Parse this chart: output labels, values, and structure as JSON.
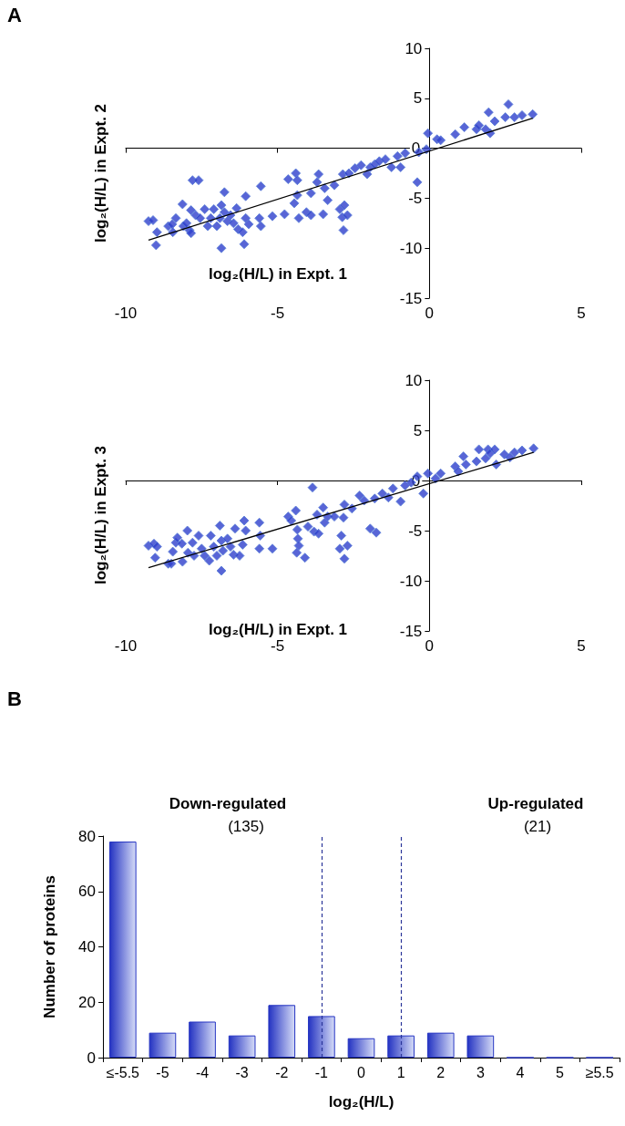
{
  "chart_data": [
    {
      "type": "scatter",
      "title": "A",
      "xlabel": "log₂(H/L) in Expt. 1",
      "ylabel": "log₂(H/L) in Expt. 2",
      "xlim": [
        -10,
        5
      ],
      "xticks": [
        -10,
        -5,
        0,
        5
      ],
      "ylim": [
        -15,
        10
      ],
      "yticks": [
        -15,
        -10,
        -5,
        0,
        5,
        10
      ],
      "marker": "diamond",
      "series": [
        {
          "type": "scatter",
          "color": "#2e3fcc",
          "x": [
            -9.25,
            -9.1,
            -8.97,
            -9.0,
            -8.6,
            -8.47,
            -8.35,
            -8.45,
            -8.13,
            -8.1,
            -8.0,
            -7.9,
            -7.85,
            -7.8,
            -7.6,
            -7.85,
            -7.7,
            -7.55,
            -7.4,
            -7.3,
            -7.2,
            -7.1,
            -7.0,
            -6.9,
            -6.85,
            -6.85,
            -6.75,
            -6.75,
            -6.65,
            -6.55,
            -6.45,
            -6.35,
            -6.3,
            -6.15,
            -6.1,
            -6.05,
            -6.05,
            -5.95,
            -5.6,
            -5.55,
            -5.55,
            -5.17,
            -4.77,
            -4.65,
            -4.4,
            -4.35,
            -4.45,
            -4.35,
            -4.3,
            -4.05,
            -3.9,
            -3.9,
            -3.7,
            -3.65,
            -3.5,
            -3.45,
            -3.35,
            -3.13,
            -2.95,
            -2.8,
            -2.87,
            -2.7,
            -2.83,
            -2.85,
            -2.65,
            -2.45,
            -2.25,
            -2.05,
            -1.95,
            -1.8,
            -1.65,
            -1.45,
            -1.25,
            -1.05,
            -0.95,
            -0.8,
            -0.4,
            -0.35,
            -0.1,
            -0.05,
            0.25,
            0.37,
            0.85,
            1.15,
            1.55,
            1.63,
            1.85,
            1.95,
            2.0,
            2.15,
            2.5,
            2.6,
            2.8,
            3.05,
            3.4
          ],
          "values": [
            -7.3,
            -7.2,
            -8.4,
            -9.7,
            -7.8,
            -7.6,
            -7.0,
            -8.4,
            -5.6,
            -7.8,
            -7.5,
            -8.2,
            -8.5,
            -3.2,
            -3.2,
            -6.2,
            -6.7,
            -7.0,
            -6.1,
            -7.8,
            -7.0,
            -6.1,
            -7.8,
            -7.0,
            -5.7,
            -10.0,
            -4.4,
            -6.4,
            -7.3,
            -6.7,
            -7.5,
            -6.0,
            -8.1,
            -8.4,
            -9.6,
            -4.8,
            -7.0,
            -7.6,
            -7.0,
            -7.8,
            -3.8,
            -6.8,
            -6.6,
            -3.1,
            -2.5,
            -3.2,
            -5.5,
            -4.7,
            -7.0,
            -6.4,
            -6.7,
            -4.5,
            -3.4,
            -2.6,
            -6.6,
            -4.0,
            -5.2,
            -3.7,
            -6.1,
            -5.7,
            -6.9,
            -6.7,
            -8.2,
            -2.6,
            -2.5,
            -2.0,
            -1.7,
            -2.6,
            -1.9,
            -1.6,
            -1.3,
            -1.1,
            -1.9,
            -0.8,
            -1.9,
            -0.5,
            -3.4,
            -0.4,
            -0.1,
            1.5,
            0.9,
            0.8,
            1.4,
            2.1,
            1.9,
            2.3,
            1.9,
            3.6,
            1.5,
            2.7,
            3.1,
            4.4,
            3.1,
            3.3,
            3.4
          ]
        },
        {
          "type": "line",
          "color": "#000000",
          "marker": "none",
          "x": [
            -9.25,
            3.4
          ],
          "values": [
            -9.2,
            3.0
          ]
        }
      ]
    },
    {
      "type": "scatter",
      "xlabel": "log₂(H/L) in Expt. 1",
      "ylabel": "log₂(H/L) in Expt. 3",
      "xlim": [
        -10,
        5
      ],
      "xticks": [
        -10,
        -5,
        0,
        5
      ],
      "ylim": [
        -15,
        10
      ],
      "yticks": [
        -15,
        -10,
        -5,
        0,
        5,
        10
      ],
      "marker": "diamond",
      "series": [
        {
          "type": "scatter",
          "color": "#2e3fcc",
          "x": [
            -9.25,
            -9.07,
            -8.97,
            -9.03,
            -8.6,
            -8.5,
            -8.45,
            -8.35,
            -8.3,
            -8.15,
            -8.13,
            -7.97,
            -7.95,
            -7.8,
            -7.75,
            -7.6,
            -7.5,
            -7.4,
            -7.25,
            -7.2,
            -7.1,
            -7.0,
            -6.9,
            -6.85,
            -6.85,
            -6.8,
            -6.65,
            -6.55,
            -6.45,
            -6.4,
            -6.25,
            -6.15,
            -6.1,
            -6.05,
            -5.6,
            -5.6,
            -5.57,
            -5.17,
            -4.65,
            -4.55,
            -4.4,
            -4.35,
            -4.33,
            -4.3,
            -4.37,
            -4.1,
            -4.0,
            -3.85,
            -3.8,
            -3.7,
            -3.65,
            -3.5,
            -3.45,
            -3.35,
            -3.13,
            -2.9,
            -2.83,
            -2.95,
            -2.8,
            -2.7,
            -2.8,
            -2.55,
            -2.3,
            -2.15,
            -1.95,
            -1.75,
            -1.8,
            -1.55,
            -1.35,
            -1.2,
            -0.95,
            -0.8,
            -0.6,
            -0.2,
            -0.4,
            -0.05,
            0.2,
            0.37,
            0.85,
            0.95,
            1.12,
            1.2,
            1.55,
            1.63,
            1.85,
            1.93,
            2.0,
            2.15,
            2.2,
            2.47,
            2.65,
            2.8,
            3.05,
            3.43
          ],
          "values": [
            -6.5,
            -6.3,
            -6.6,
            -7.7,
            -8.3,
            -8.3,
            -7.1,
            -6.2,
            -5.7,
            -6.3,
            -8.1,
            -5.0,
            -7.2,
            -6.2,
            -7.5,
            -5.5,
            -6.8,
            -7.5,
            -8.0,
            -5.5,
            -6.6,
            -7.5,
            -4.5,
            -6.0,
            -9.0,
            -7.0,
            -5.8,
            -6.6,
            -7.4,
            -4.8,
            -7.5,
            -6.4,
            -4.0,
            -5.0,
            -4.2,
            -6.8,
            -5.5,
            -6.8,
            -3.6,
            -4.0,
            -3.0,
            -4.9,
            -5.8,
            -6.5,
            -7.2,
            -7.7,
            -4.6,
            -0.7,
            -5.1,
            -3.4,
            -5.3,
            -2.7,
            -4.2,
            -3.6,
            -3.6,
            -5.5,
            -3.7,
            -6.8,
            -7.8,
            -6.5,
            -2.4,
            -2.8,
            -1.5,
            -2.0,
            -4.8,
            -5.2,
            -1.8,
            -1.3,
            -1.7,
            -0.8,
            -2.1,
            -0.5,
            -0.2,
            -1.3,
            0.4,
            0.7,
            0.2,
            0.7,
            1.4,
            0.9,
            2.4,
            1.6,
            1.9,
            3.1,
            2.2,
            3.1,
            2.7,
            3.1,
            1.6,
            2.6,
            2.3,
            2.8,
            3.0,
            3.2
          ]
        },
        {
          "type": "line",
          "color": "#000000",
          "marker": "none",
          "x": [
            -9.25,
            3.43
          ],
          "values": [
            -8.7,
            2.8
          ]
        }
      ]
    },
    {
      "type": "bar",
      "title": "B",
      "xlabel": "log₂(H/L)",
      "ylabel": "Number of proteins",
      "categories": [
        "≤-5.5",
        "-5",
        "-4",
        "-3",
        "-2",
        "-1",
        "0",
        "1",
        "2",
        "3",
        "4",
        "5",
        "≥5.5"
      ],
      "values": [
        78,
        9,
        13,
        8,
        19,
        15,
        7,
        8,
        9,
        8,
        0,
        0,
        0
      ],
      "color": "#2433c2",
      "ylim": [
        0,
        80
      ],
      "yticks": [
        0,
        20,
        40,
        60,
        80
      ],
      "ref_lines": [
        {
          "axis": "x",
          "value": "-1",
          "color": "#2a3599",
          "line_style": "dashed"
        },
        {
          "axis": "x",
          "value": "1",
          "color": "#2a3599",
          "line_style": "dashed"
        }
      ],
      "annotations": [
        "Down-regulated",
        "(135)",
        "Up-regulated",
        "(21)"
      ]
    }
  ]
}
